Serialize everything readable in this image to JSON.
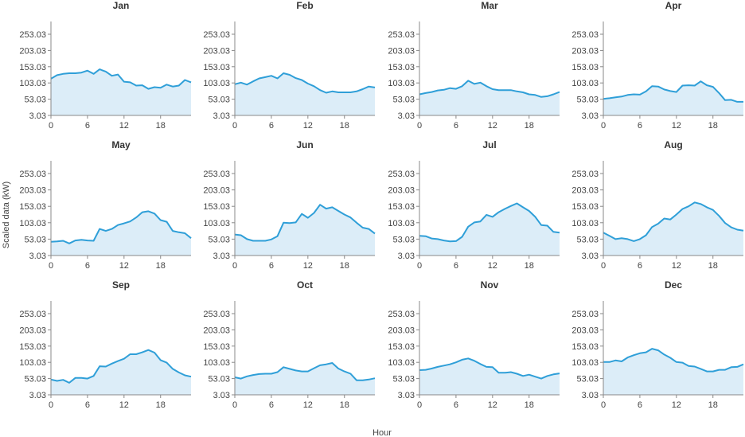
{
  "chart_data": {
    "type": "area",
    "xlabel": "Hour",
    "ylabel": "Scaled data (kW)",
    "ylim": [
      3.03,
      278.03
    ],
    "xlim": [
      0,
      23
    ],
    "y_ticks": [
      3.03,
      53.03,
      103.03,
      153.03,
      203.03,
      253.03
    ],
    "y_tick_labels": [
      "3.03",
      "53.03",
      "103.03",
      "153.03",
      "203.03",
      "253.03"
    ],
    "x_ticks": [
      0,
      6,
      12,
      18
    ],
    "x_tick_labels": [
      "0",
      "6",
      "12",
      "18"
    ],
    "grid": false,
    "colors": {
      "line": "#2f9fd8",
      "fill": "#dcedf8",
      "axis": "#888888"
    },
    "hours": [
      0,
      1,
      2,
      3,
      4,
      5,
      6,
      7,
      8,
      9,
      10,
      11,
      12,
      13,
      14,
      15,
      16,
      17,
      18,
      19,
      20,
      21,
      22,
      23
    ],
    "panels": [
      {
        "title": "Jan",
        "values": [
          116,
          127,
          131,
          133,
          133,
          135,
          141,
          131,
          145,
          138,
          125,
          129,
          107,
          105,
          95,
          96,
          85,
          90,
          88,
          98,
          92,
          95,
          112,
          105
        ]
      },
      {
        "title": "Feb",
        "values": [
          99,
          104,
          98,
          108,
          117,
          121,
          125,
          117,
          133,
          128,
          118,
          112,
          101,
          93,
          81,
          73,
          77,
          74,
          74,
          74,
          77,
          84,
          92,
          89
        ]
      },
      {
        "title": "Mar",
        "values": [
          68,
          72,
          75,
          80,
          82,
          87,
          85,
          93,
          110,
          100,
          104,
          93,
          84,
          81,
          81,
          81,
          77,
          74,
          68,
          66,
          60,
          62,
          68,
          75
        ]
      },
      {
        "title": "Apr",
        "values": [
          54,
          56,
          59,
          61,
          66,
          68,
          67,
          77,
          93,
          92,
          83,
          78,
          75,
          95,
          96,
          95,
          108,
          96,
          91,
          72,
          50,
          51,
          45,
          45
        ]
      },
      {
        "title": "May",
        "values": [
          45,
          46,
          48,
          40,
          49,
          51,
          49,
          48,
          84,
          78,
          84,
          96,
          101,
          107,
          119,
          135,
          138,
          131,
          111,
          106,
          78,
          74,
          71,
          56
        ]
      },
      {
        "title": "Jun",
        "values": [
          67,
          65,
          53,
          48,
          48,
          48,
          52,
          62,
          103,
          102,
          104,
          130,
          118,
          133,
          158,
          146,
          150,
          139,
          128,
          119,
          103,
          88,
          84,
          70
        ]
      },
      {
        "title": "Jul",
        "values": [
          63,
          62,
          55,
          53,
          49,
          46,
          47,
          60,
          91,
          104,
          107,
          127,
          121,
          135,
          145,
          154,
          162,
          150,
          139,
          121,
          96,
          94,
          75,
          73
        ]
      },
      {
        "title": "Aug",
        "values": [
          73,
          63,
          53,
          56,
          53,
          47,
          53,
          65,
          90,
          100,
          116,
          113,
          128,
          145,
          153,
          165,
          160,
          150,
          142,
          124,
          102,
          89,
          82,
          79
        ]
      },
      {
        "title": "Sep",
        "values": [
          50,
          46,
          49,
          40,
          55,
          55,
          53,
          61,
          91,
          90,
          99,
          107,
          114,
          128,
          128,
          134,
          141,
          133,
          110,
          102,
          83,
          72,
          63,
          59
        ]
      },
      {
        "title": "Oct",
        "values": [
          57,
          53,
          60,
          64,
          67,
          68,
          68,
          73,
          88,
          83,
          78,
          75,
          75,
          85,
          94,
          97,
          101,
          84,
          75,
          68,
          48,
          48,
          50,
          54
        ]
      },
      {
        "title": "Nov",
        "values": [
          79,
          80,
          84,
          89,
          93,
          97,
          103,
          111,
          115,
          108,
          98,
          89,
          88,
          71,
          71,
          73,
          68,
          61,
          65,
          59,
          53,
          61,
          66,
          69
        ]
      },
      {
        "title": "Dec",
        "values": [
          104,
          104,
          109,
          106,
          118,
          125,
          131,
          134,
          145,
          140,
          127,
          117,
          104,
          102,
          92,
          90,
          83,
          75,
          75,
          80,
          80,
          88,
          89,
          97
        ]
      }
    ]
  }
}
